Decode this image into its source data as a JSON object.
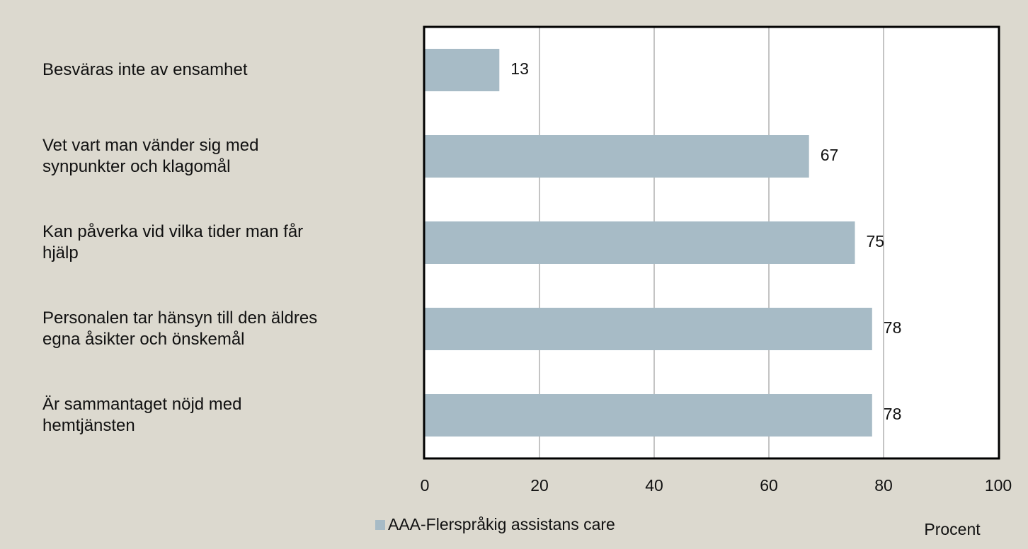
{
  "chart_data": {
    "type": "bar",
    "orientation": "horizontal",
    "categories": [
      "Besväras inte av ensamhet",
      "Vet vart man vänder sig med\nsynpunkter och klagomål",
      "Kan påverka vid vilka tider man får\nhjälp",
      "Personalen tar hänsyn till den äldres\negna åsikter och önskemål",
      "Är sammantaget nöjd med\nhemtjänsten"
    ],
    "series": [
      {
        "name": "AAA-Flerspråkig assistans care",
        "color": "#a7bbc6",
        "values": [
          13,
          67,
          75,
          78,
          78
        ]
      }
    ],
    "x_label": "Procent",
    "xlim": [
      0,
      100
    ],
    "xticks": [
      0,
      20,
      40,
      60,
      80,
      100
    ],
    "grid": true,
    "legend": "bottom"
  }
}
